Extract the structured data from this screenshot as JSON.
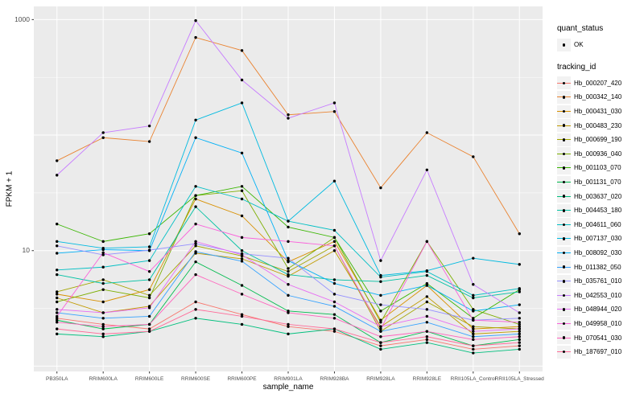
{
  "legend": {
    "quant_status_title": "quant_status",
    "quant_status_items": [
      {
        "label": "OK"
      }
    ],
    "tracking_id_title": "tracking_id"
  },
  "chart_data": {
    "type": "line",
    "title": "",
    "xlabel": "sample_name",
    "ylabel": "FPKM + 1",
    "y_scale": "log10",
    "ylim": [
      0.9,
      1300
    ],
    "y_ticks": [
      1000,
      10
    ],
    "y_tick_labels": [
      "1000",
      "10"
    ],
    "grid_major_y": [
      1,
      10,
      100,
      1000
    ],
    "grid_minor_y": [
      3.162,
      31.62,
      316.2
    ],
    "panel_bg": "#EBEBEB",
    "grid_color": "#FFFFFF",
    "point_color": "#000000",
    "point_shape": "filled-circle",
    "legend_position": "right",
    "categories": [
      "PB350LA",
      "RRIM600LA",
      "RRIM600LE",
      "RRIM600SE",
      "RRIM600PE",
      "RRIM901LA",
      "RRIM928BA",
      "RRIM928LA",
      "RRIM928LE",
      "RRII105LA_Control",
      "RRII105LA_Stressed"
    ],
    "series": [
      {
        "name": "Hb_000207_420",
        "color": "#F8766D",
        "values": [
          2.6,
          2.3,
          2.1,
          3.6,
          2.8,
          2.2,
          2.0,
          1.5,
          1.7,
          1.4,
          1.5
        ]
      },
      {
        "name": "Hb_000342_140",
        "color": "#EA8331",
        "values": [
          60,
          95,
          88,
          700,
          540,
          150,
          160,
          35,
          105,
          65,
          14
        ]
      },
      {
        "name": "Hb_000431_030",
        "color": "#D89000",
        "values": [
          4.2,
          3.6,
          4.6,
          28,
          20,
          8,
          12,
          2.5,
          5,
          2.1,
          2.2
        ]
      },
      {
        "name": "Hb_000483_230",
        "color": "#C09B00",
        "values": [
          3.9,
          2.9,
          3.3,
          9.5,
          8.5,
          6,
          10,
          2.2,
          4,
          1.9,
          2.0
        ]
      },
      {
        "name": "Hb_000699_190",
        "color": "#A3A500",
        "values": [
          4.4,
          5.6,
          4.1,
          11,
          9,
          6.6,
          11,
          2.0,
          3.6,
          2.2,
          2.1
        ]
      },
      {
        "name": "Hb_000936_040",
        "color": "#7CAE00",
        "values": [
          3.6,
          4.6,
          3.9,
          30,
          33,
          7,
          13,
          2.4,
          12,
          3.1,
          2.3
        ]
      },
      {
        "name": "Hb_001103_070",
        "color": "#39B600",
        "values": [
          17,
          12,
          14,
          30,
          36,
          16,
          13,
          3.0,
          5.2,
          2.6,
          4.6
        ]
      },
      {
        "name": "Hb_001131_070",
        "color": "#00BB4E",
        "values": [
          2.5,
          2.1,
          2.3,
          8,
          5,
          3,
          2.8,
          1.6,
          2.0,
          1.5,
          1.7
        ]
      },
      {
        "name": "Hb_003637_020",
        "color": "#00BF7D",
        "values": [
          1.9,
          1.8,
          2.0,
          2.6,
          2.3,
          1.9,
          2.1,
          1.4,
          1.6,
          1.3,
          1.4
        ]
      },
      {
        "name": "Hb_004453_180",
        "color": "#00C1A3",
        "values": [
          6.2,
          5.2,
          5.6,
          24,
          10,
          6.2,
          5.6,
          5.4,
          6.1,
          3.9,
          4.4
        ]
      },
      {
        "name": "Hb_004611_060",
        "color": "#00BFC4",
        "values": [
          6.8,
          7.2,
          8.2,
          36,
          28,
          18,
          15,
          5.9,
          6.6,
          4.1,
          4.7
        ]
      },
      {
        "name": "Hb_007137_030",
        "color": "#00BAE0",
        "values": [
          12,
          10.5,
          10.8,
          135,
          190,
          18,
          40,
          6.1,
          6.7,
          8.6,
          7.6
        ]
      },
      {
        "name": "Hb_008092_030",
        "color": "#00B0F6",
        "values": [
          9.5,
          10.2,
          10.0,
          95,
          70,
          8.2,
          5.2,
          4.1,
          5.0,
          3.0,
          3.4
        ]
      },
      {
        "name": "Hb_011382_050",
        "color": "#35A2FF",
        "values": [
          2.9,
          2.6,
          2.7,
          9.8,
          8.1,
          4.1,
          3.3,
          2.0,
          2.4,
          1.8,
          1.9
        ]
      },
      {
        "name": "Hb_035761_010",
        "color": "#9590FF",
        "values": [
          11,
          9.2,
          10.1,
          11.5,
          9.4,
          8.6,
          4.2,
          3.4,
          3.1,
          2.5,
          2.6
        ]
      },
      {
        "name": "Hb_042553_010",
        "color": "#C77CFF",
        "values": [
          45,
          105,
          120,
          980,
          300,
          140,
          190,
          8.2,
          50,
          5.1,
          2.9
        ]
      },
      {
        "name": "Hb_048944_020",
        "color": "#E76BF3",
        "values": [
          3.1,
          2.9,
          3.2,
          12,
          9.2,
          5.1,
          3.6,
          2.2,
          2.7,
          2.0,
          2.1
        ]
      },
      {
        "name": "Hb_049958_010",
        "color": "#FA62DB",
        "values": [
          2.7,
          9.6,
          6.6,
          17,
          13,
          12,
          11,
          2.1,
          12,
          2.5,
          2.4
        ]
      },
      {
        "name": "Hb_070541_030",
        "color": "#FF62BC",
        "values": [
          2.4,
          2.2,
          2.3,
          6.2,
          4.2,
          2.9,
          2.6,
          1.8,
          2.0,
          1.7,
          1.8
        ]
      },
      {
        "name": "Hb_187697_010",
        "color": "#FF6A98",
        "values": [
          2.1,
          1.9,
          2.0,
          3.1,
          2.7,
          2.3,
          2.1,
          1.6,
          1.8,
          1.5,
          1.6
        ]
      }
    ]
  }
}
